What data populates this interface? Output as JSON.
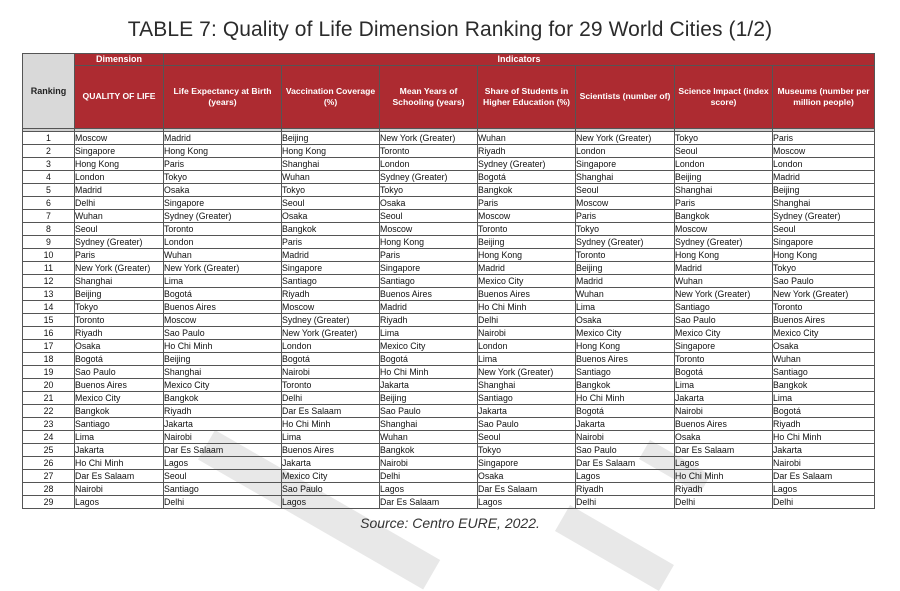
{
  "title": "TABLE 7: Quality of Life Dimension Ranking for 29 World Cities (1/2)",
  "source": "Source: Centro EURE, 2022.",
  "group_headers": {
    "dimension": "Dimension",
    "indicators": "Indicators"
  },
  "ranking_label": "Ranking",
  "columns": [
    "QUALITY OF LIFE",
    "Life Expectancy at Birth (years)",
    "Vaccination Coverage (%)",
    "Mean Years of Schooling (years)",
    "Share of Students in Higher Education (%)",
    "Scientists (number of)",
    "Science Impact (index score)",
    "Museums (number per million people)"
  ],
  "colors": {
    "header_red": "#ad2b31",
    "ranking_gray": "#d9d9d9"
  },
  "rows": [
    {
      "rank": "1",
      "cells": [
        "Moscow",
        "Madrid",
        "Beijing",
        "New York (Greater)",
        "Wuhan",
        "New York (Greater)",
        "Tokyo",
        "Paris"
      ]
    },
    {
      "rank": "2",
      "cells": [
        "Singapore",
        "Hong Kong",
        "Hong Kong",
        "Toronto",
        "Riyadh",
        "London",
        "Seoul",
        "Moscow"
      ]
    },
    {
      "rank": "3",
      "cells": [
        "Hong Kong",
        "Paris",
        "Shanghai",
        "London",
        "Sydney (Greater)",
        "Singapore",
        "London",
        "London"
      ]
    },
    {
      "rank": "4",
      "cells": [
        "London",
        "Tokyo",
        "Wuhan",
        "Sydney (Greater)",
        "Bogotá",
        "Shanghai",
        "Beijing",
        "Madrid"
      ]
    },
    {
      "rank": "5",
      "cells": [
        "Madrid",
        "Osaka",
        "Tokyo",
        "Tokyo",
        "Bangkok",
        "Seoul",
        "Shanghai",
        "Beijing"
      ]
    },
    {
      "rank": "6",
      "cells": [
        "Delhi",
        "Singapore",
        "Seoul",
        "Osaka",
        "Paris",
        "Moscow",
        "Paris",
        "Shanghai"
      ]
    },
    {
      "rank": "7",
      "cells": [
        "Wuhan",
        "Sydney (Greater)",
        "Osaka",
        "Seoul",
        "Moscow",
        "Paris",
        "Bangkok",
        "Sydney (Greater)"
      ]
    },
    {
      "rank": "8",
      "cells": [
        "Seoul",
        "Toronto",
        "Bangkok",
        "Moscow",
        "Toronto",
        "Tokyo",
        "Moscow",
        "Seoul"
      ]
    },
    {
      "rank": "9",
      "cells": [
        "Sydney (Greater)",
        "London",
        "Paris",
        "Hong Kong",
        "Beijing",
        "Sydney (Greater)",
        "Sydney (Greater)",
        "Singapore"
      ]
    },
    {
      "rank": "10",
      "cells": [
        "Paris",
        "Wuhan",
        "Madrid",
        "Paris",
        "Hong Kong",
        "Toronto",
        "Hong Kong",
        "Hong Kong"
      ]
    },
    {
      "rank": "11",
      "cells": [
        "New York (Greater)",
        "New York (Greater)",
        "Singapore",
        "Singapore",
        "Madrid",
        "Beijing",
        "Madrid",
        "Tokyo"
      ]
    },
    {
      "rank": "12",
      "cells": [
        "Shanghai",
        "Lima",
        "Santiago",
        "Santiago",
        "Mexico City",
        "Madrid",
        "Wuhan",
        "Sao Paulo"
      ]
    },
    {
      "rank": "13",
      "cells": [
        "Beijing",
        "Bogotá",
        "Riyadh",
        "Buenos Aires",
        "Buenos Aires",
        "Wuhan",
        "New York (Greater)",
        "New York (Greater)"
      ]
    },
    {
      "rank": "14",
      "cells": [
        "Tokyo",
        "Buenos Aires",
        "Moscow",
        "Madrid",
        "Ho Chi Minh",
        "Lima",
        "Santiago",
        "Toronto"
      ]
    },
    {
      "rank": "15",
      "cells": [
        "Toronto",
        "Moscow",
        "Sydney (Greater)",
        "Riyadh",
        "Delhi",
        "Osaka",
        "Sao Paulo",
        "Buenos Aires"
      ]
    },
    {
      "rank": "16",
      "cells": [
        "Riyadh",
        "Sao Paulo",
        "New York (Greater)",
        "Lima",
        "Nairobi",
        "Mexico City",
        "Mexico City",
        "Mexico City"
      ]
    },
    {
      "rank": "17",
      "cells": [
        "Osaka",
        "Ho Chi Minh",
        "London",
        "Mexico City",
        "London",
        "Hong Kong",
        "Singapore",
        "Osaka"
      ]
    },
    {
      "rank": "18",
      "cells": [
        "Bogotá",
        "Beijing",
        "Bogotá",
        "Bogotá",
        "Lima",
        "Buenos Aires",
        "Toronto",
        "Wuhan"
      ]
    },
    {
      "rank": "19",
      "cells": [
        "Sao Paulo",
        "Shanghai",
        "Nairobi",
        "Ho Chi Minh",
        "New York (Greater)",
        "Santiago",
        "Bogotá",
        "Santiago"
      ]
    },
    {
      "rank": "20",
      "cells": [
        "Buenos Aires",
        "Mexico City",
        "Toronto",
        "Jakarta",
        "Shanghai",
        "Bangkok",
        "Lima",
        "Bangkok"
      ]
    },
    {
      "rank": "21",
      "cells": [
        "Mexico City",
        "Bangkok",
        "Delhi",
        "Beijing",
        "Santiago",
        "Ho Chi Minh",
        "Jakarta",
        "Lima"
      ]
    },
    {
      "rank": "22",
      "cells": [
        "Bangkok",
        "Riyadh",
        "Dar Es Salaam",
        "Sao Paulo",
        "Jakarta",
        "Bogotá",
        "Nairobi",
        "Bogotá"
      ]
    },
    {
      "rank": "23",
      "cells": [
        "Santiago",
        "Jakarta",
        "Ho Chi Minh",
        "Shanghai",
        "Sao Paulo",
        "Jakarta",
        "Buenos Aires",
        "Riyadh"
      ]
    },
    {
      "rank": "24",
      "cells": [
        "Lima",
        "Nairobi",
        "Lima",
        "Wuhan",
        "Seoul",
        "Nairobi",
        "Osaka",
        "Ho Chi Minh"
      ]
    },
    {
      "rank": "25",
      "cells": [
        "Jakarta",
        "Dar Es Salaam",
        "Buenos Aires",
        "Bangkok",
        "Tokyo",
        "Sao Paulo",
        "Dar Es Salaam",
        "Jakarta"
      ]
    },
    {
      "rank": "26",
      "cells": [
        "Ho Chi Minh",
        "Lagos",
        "Jakarta",
        "Nairobi",
        "Singapore",
        "Dar Es Salaam",
        "Lagos",
        "Nairobi"
      ]
    },
    {
      "rank": "27",
      "cells": [
        "Dar Es Salaam",
        "Seoul",
        "Mexico City",
        "Delhi",
        "Osaka",
        "Lagos",
        "Ho Chi Minh",
        "Dar Es Salaam"
      ]
    },
    {
      "rank": "28",
      "cells": [
        "Nairobi",
        "Santiago",
        "Sao Paulo",
        "Lagos",
        "Dar Es Salaam",
        "Riyadh",
        "Riyadh",
        "Lagos"
      ]
    },
    {
      "rank": "29",
      "cells": [
        "Lagos",
        "Delhi",
        "Lagos",
        "Dar Es Salaam",
        "Lagos",
        "Delhi",
        "Delhi",
        "Delhi"
      ]
    }
  ]
}
